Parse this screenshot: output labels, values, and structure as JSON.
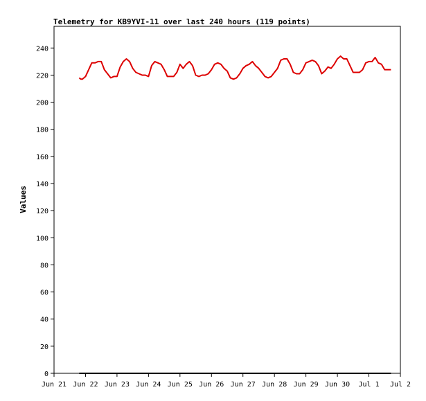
{
  "chart_data": {
    "type": "line",
    "title": "Telemetry for KB9YVI-11 over last 240 hours (119 points)",
    "xlabel": "",
    "ylabel": "Values",
    "x_ticks": [
      "Jun 21",
      "Jun 22",
      "Jun 23",
      "Jun 24",
      "Jun 25",
      "Jun 26",
      "Jun 27",
      "Jun 28",
      "Jun 29",
      "Jun 30",
      "Jul 1",
      "Jul 2"
    ],
    "y_ticks": [
      "0",
      "20",
      "40",
      "60",
      "80",
      "100",
      "120",
      "140",
      "160",
      "180",
      "200",
      "220",
      "240"
    ],
    "xlim_days": [
      0,
      11
    ],
    "ylim": [
      0,
      256
    ],
    "grid": false,
    "series": [
      {
        "color": "#dd0000",
        "x_days": [
          0.8,
          0.85,
          0.9,
          0.95,
          1.0,
          1.1,
          1.2,
          1.3,
          1.4,
          1.5,
          1.6,
          1.7,
          1.8,
          1.9,
          2.0,
          2.1,
          2.2,
          2.3,
          2.4,
          2.5,
          2.6,
          2.7,
          2.8,
          2.9,
          3.0,
          3.1,
          3.2,
          3.3,
          3.4,
          3.5,
          3.6,
          3.7,
          3.8,
          3.9,
          4.0,
          4.1,
          4.2,
          4.3,
          4.4,
          4.5,
          4.6,
          4.7,
          4.8,
          4.9,
          5.0,
          5.1,
          5.2,
          5.3,
          5.4,
          5.5,
          5.6,
          5.7,
          5.8,
          5.9,
          6.0,
          6.1,
          6.2,
          6.3,
          6.4,
          6.5,
          6.6,
          6.7,
          6.8,
          6.9,
          7.0,
          7.1,
          7.2,
          7.3,
          7.4,
          7.5,
          7.6,
          7.7,
          7.8,
          7.9,
          8.0,
          8.1,
          8.2,
          8.3,
          8.4,
          8.5,
          8.6,
          8.7,
          8.8,
          8.9,
          9.0,
          9.1,
          9.2,
          9.3,
          9.4,
          9.5,
          9.6,
          9.7,
          9.8,
          9.9,
          10.0,
          10.1,
          10.2,
          10.3,
          10.4,
          10.5,
          10.6,
          10.7
        ],
        "values": [
          218,
          217,
          217,
          218,
          219,
          224,
          229,
          229,
          230,
          230,
          224,
          221,
          218,
          219,
          219,
          226,
          230,
          232,
          230,
          225,
          222,
          221,
          220,
          220,
          219,
          227,
          230,
          229,
          228,
          224,
          219,
          219,
          219,
          222,
          228,
          225,
          228,
          230,
          227,
          220,
          219,
          220,
          220,
          221,
          224,
          228,
          229,
          228,
          225,
          223,
          218,
          217,
          218,
          221,
          225,
          227,
          228,
          230,
          227,
          225,
          222,
          219,
          218,
          219,
          222,
          225,
          231,
          232,
          232,
          228,
          222,
          221,
          221,
          224,
          229,
          230,
          231,
          230,
          227,
          221,
          223,
          226,
          225,
          228,
          232,
          234,
          232,
          232,
          227,
          222,
          222,
          222,
          224,
          229,
          230,
          230,
          233,
          229,
          228,
          224,
          224,
          224
        ]
      },
      {
        "color": "#000000",
        "x_days": [
          0.8,
          10.7
        ],
        "values": [
          0,
          0
        ]
      }
    ]
  }
}
